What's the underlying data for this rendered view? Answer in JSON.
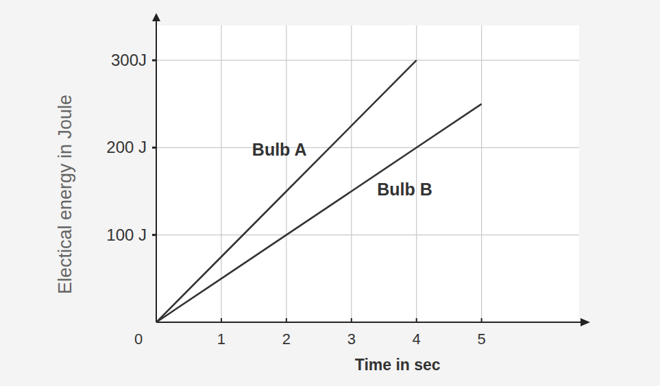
{
  "chart_data": {
    "type": "line",
    "x_label": "Time in sec",
    "y_label": "Electical energy in Joule",
    "x": [
      0,
      1,
      2,
      3,
      4,
      5
    ],
    "series": [
      {
        "name": "Bulb A",
        "color": "#333333",
        "values": [
          0,
          75,
          150,
          225,
          300,
          null
        ]
      },
      {
        "name": "Bulb B",
        "color": "#333333",
        "values": [
          0,
          50,
          100,
          150,
          200,
          250
        ]
      }
    ],
    "xlim": [
      0,
      6.5
    ],
    "ylim": [
      0,
      340
    ],
    "xticks": [
      0,
      1,
      2,
      3,
      4,
      5
    ],
    "yticks": [
      {
        "value": 100,
        "label": "100 J"
      },
      {
        "value": 200,
        "label": "200 J"
      },
      {
        "value": 300,
        "label": "300J"
      }
    ],
    "grid": true
  }
}
